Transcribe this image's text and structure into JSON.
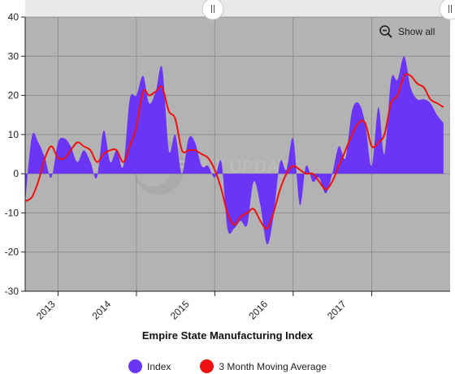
{
  "chart_data": {
    "type": "area",
    "title": "",
    "xlabel": "Empire State Manufacturing Index",
    "ylabel": "",
    "ylim": [
      -30,
      40
    ],
    "yticks": [
      -30,
      -20,
      -10,
      0,
      10,
      20,
      30,
      40
    ],
    "xlim": [
      "2012-08-01",
      "2018-01-01"
    ],
    "xticks": [
      {
        "label": "2013",
        "date": "2013-01-01"
      },
      {
        "label": "2014",
        "date": "2014-01-01"
      },
      {
        "label": "2015",
        "date": "2015-01-01"
      },
      {
        "label": "2016",
        "date": "2016-01-01"
      },
      {
        "label": "2017",
        "date": "2017-01-01"
      }
    ],
    "grid": true,
    "legend_position": "bottom",
    "plot_background": "#b3b3b3",
    "watermark": "STEEL MARKET UPDATE",
    "series": [
      {
        "name": "Index",
        "kind": "area",
        "color": "#6a35f5",
        "points": [
          [
            "2012-08-01",
            -7.5
          ],
          [
            "2012-09-01",
            9.5
          ],
          [
            "2012-10-01",
            8
          ],
          [
            "2012-11-01",
            4
          ],
          [
            "2012-12-01",
            -1
          ],
          [
            "2013-01-01",
            8
          ],
          [
            "2013-02-01",
            9
          ],
          [
            "2013-03-01",
            7
          ],
          [
            "2013-04-01",
            3
          ],
          [
            "2013-05-01",
            6
          ],
          [
            "2013-06-01",
            3
          ],
          [
            "2013-07-01",
            -1
          ],
          [
            "2013-08-01",
            11
          ],
          [
            "2013-09-01",
            3
          ],
          [
            "2013-10-01",
            6
          ],
          [
            "2013-11-01",
            2
          ],
          [
            "2013-12-01",
            19
          ],
          [
            "2014-01-01",
            20
          ],
          [
            "2014-02-01",
            25
          ],
          [
            "2014-03-01",
            18
          ],
          [
            "2014-04-01",
            21
          ],
          [
            "2014-05-01",
            27
          ],
          [
            "2014-06-01",
            6
          ],
          [
            "2014-07-01",
            10
          ],
          [
            "2014-08-01",
            0
          ],
          [
            "2014-09-01",
            9
          ],
          [
            "2014-10-01",
            8
          ],
          [
            "2014-11-01",
            2
          ],
          [
            "2014-12-01",
            2
          ],
          [
            "2015-01-01",
            -1
          ],
          [
            "2015-02-01",
            3
          ],
          [
            "2015-03-01",
            -14
          ],
          [
            "2015-04-01",
            -14
          ],
          [
            "2015-05-01",
            -12
          ],
          [
            "2015-06-01",
            -13
          ],
          [
            "2015-07-01",
            -2
          ],
          [
            "2015-08-01",
            -8
          ],
          [
            "2015-09-01",
            -18
          ],
          [
            "2015-10-01",
            -11
          ],
          [
            "2015-11-01",
            3
          ],
          [
            "2015-12-01",
            1
          ],
          [
            "2016-01-01",
            9
          ],
          [
            "2016-02-01",
            -8
          ],
          [
            "2016-03-01",
            2
          ],
          [
            "2016-04-01",
            -2
          ],
          [
            "2016-05-01",
            -1
          ],
          [
            "2016-06-01",
            -5
          ],
          [
            "2016-07-01",
            0
          ],
          [
            "2016-08-01",
            7
          ],
          [
            "2016-09-01",
            4
          ],
          [
            "2016-10-01",
            16
          ],
          [
            "2016-11-01",
            18
          ],
          [
            "2016-12-01",
            13
          ],
          [
            "2017-01-01",
            2
          ],
          [
            "2017-02-01",
            17
          ],
          [
            "2017-03-01",
            5
          ],
          [
            "2017-04-01",
            24
          ],
          [
            "2017-05-01",
            24
          ],
          [
            "2017-06-01",
            30
          ],
          [
            "2017-07-01",
            22
          ],
          [
            "2017-08-01",
            19
          ],
          [
            "2017-09-01",
            19
          ],
          [
            "2017-10-01",
            18
          ],
          [
            "2017-11-01",
            15
          ],
          [
            "2017-12-01",
            13
          ]
        ]
      },
      {
        "name": "3 Month Moving Average",
        "kind": "line",
        "color": "#ee1111",
        "points": [
          [
            "2012-08-01",
            -7
          ],
          [
            "2012-09-01",
            -6
          ],
          [
            "2012-10-01",
            -2
          ],
          [
            "2012-11-01",
            4
          ],
          [
            "2012-12-01",
            7
          ],
          [
            "2013-01-01",
            4
          ],
          [
            "2013-02-01",
            4
          ],
          [
            "2013-03-01",
            6
          ],
          [
            "2013-04-01",
            8
          ],
          [
            "2013-05-01",
            7
          ],
          [
            "2013-06-01",
            6
          ],
          [
            "2013-07-01",
            3
          ],
          [
            "2013-08-01",
            5
          ],
          [
            "2013-09-01",
            6
          ],
          [
            "2013-10-01",
            6
          ],
          [
            "2013-11-01",
            3
          ],
          [
            "2013-12-01",
            7
          ],
          [
            "2014-01-01",
            12
          ],
          [
            "2014-02-01",
            21
          ],
          [
            "2014-03-01",
            20
          ],
          [
            "2014-04-01",
            21
          ],
          [
            "2014-05-01",
            22
          ],
          [
            "2014-06-01",
            16
          ],
          [
            "2014-07-01",
            14
          ],
          [
            "2014-08-01",
            6
          ],
          [
            "2014-09-01",
            6
          ],
          [
            "2014-10-01",
            6
          ],
          [
            "2014-11-01",
            5
          ],
          [
            "2014-12-01",
            4
          ],
          [
            "2015-01-01",
            1
          ],
          [
            "2015-02-01",
            -4
          ],
          [
            "2015-03-01",
            -10
          ],
          [
            "2015-04-01",
            -13
          ],
          [
            "2015-05-01",
            -11
          ],
          [
            "2015-06-01",
            -10
          ],
          [
            "2015-07-01",
            -9
          ],
          [
            "2015-08-01",
            -12
          ],
          [
            "2015-09-01",
            -14
          ],
          [
            "2015-10-01",
            -10
          ],
          [
            "2015-11-01",
            -4
          ],
          [
            "2015-12-01",
            0
          ],
          [
            "2016-01-01",
            2
          ],
          [
            "2016-02-01",
            1
          ],
          [
            "2016-03-01",
            0
          ],
          [
            "2016-04-01",
            0
          ],
          [
            "2016-05-01",
            -2
          ],
          [
            "2016-06-01",
            -4
          ],
          [
            "2016-07-01",
            -2
          ],
          [
            "2016-08-01",
            2
          ],
          [
            "2016-09-01",
            6
          ],
          [
            "2016-10-01",
            10
          ],
          [
            "2016-11-01",
            13
          ],
          [
            "2016-12-01",
            13
          ],
          [
            "2017-01-01",
            7
          ],
          [
            "2017-02-01",
            8
          ],
          [
            "2017-03-01",
            10
          ],
          [
            "2017-04-01",
            18
          ],
          [
            "2017-05-01",
            20
          ],
          [
            "2017-06-01",
            25
          ],
          [
            "2017-07-01",
            25
          ],
          [
            "2017-08-01",
            23
          ],
          [
            "2017-09-01",
            22
          ],
          [
            "2017-10-01",
            19
          ],
          [
            "2017-11-01",
            18
          ],
          [
            "2017-12-01",
            17
          ]
        ]
      }
    ]
  },
  "controls": {
    "show_all_label": "Show all",
    "zoom_icon": "zoom-out-icon",
    "navigator_handle_icon": "grip-icon"
  }
}
